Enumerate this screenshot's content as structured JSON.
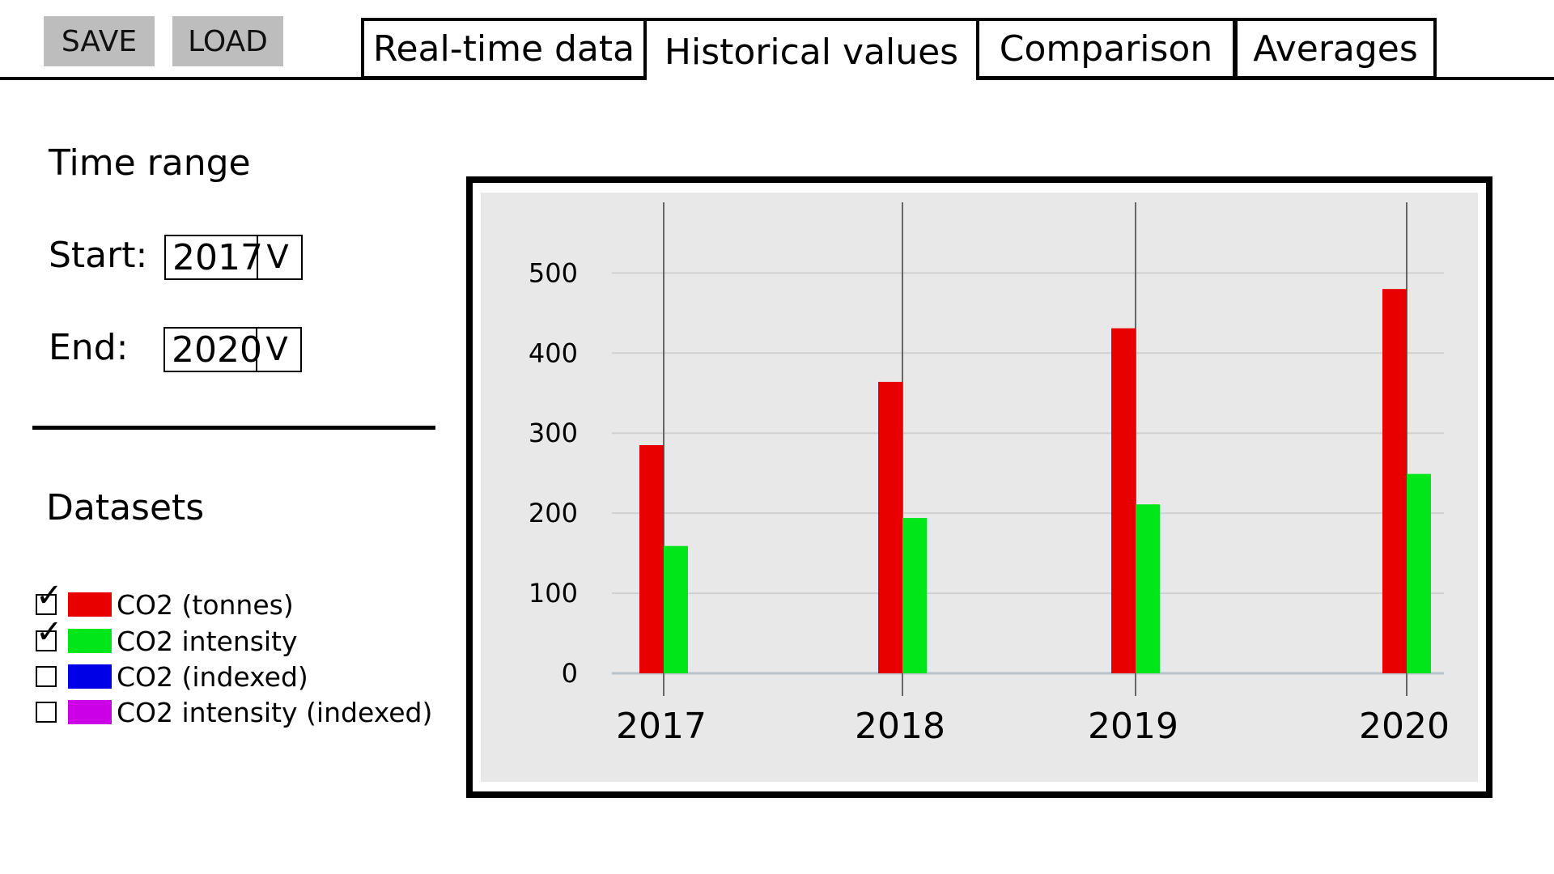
{
  "toolbar": {
    "save_label": "SAVE",
    "load_label": "LOAD"
  },
  "tabs": [
    {
      "label": "Real-time data",
      "active": false
    },
    {
      "label": "Historical values",
      "active": true
    },
    {
      "label": "Comparison",
      "active": false
    },
    {
      "label": "Averages",
      "active": false
    }
  ],
  "time_range": {
    "title": "Time range",
    "start_label": "Start:",
    "start_value": "2017",
    "end_label": "End:",
    "end_value": "2020",
    "dropdown_glyph": "V"
  },
  "datasets": {
    "title": "Datasets",
    "items": [
      {
        "label": "CO2 (tonnes)",
        "color": "#e80000",
        "checked": true
      },
      {
        "label": "CO2 intensity",
        "color": "#00e619",
        "checked": true
      },
      {
        "label": "CO2 (indexed)",
        "color": "#0000e6",
        "checked": false
      },
      {
        "label": "CO2 intensity (indexed)",
        "color": "#cc00e6",
        "checked": false
      }
    ]
  },
  "chart_data": {
    "type": "bar",
    "categories": [
      "2017",
      "2018",
      "2019",
      "2020"
    ],
    "series": [
      {
        "color": "#e80000",
        "values": [
          285,
          364,
          431,
          480
        ]
      },
      {
        "color": "#00e619",
        "values": [
          159,
          194,
          211,
          249
        ]
      }
    ],
    "yticks": [
      0,
      100,
      200,
      300,
      400,
      500
    ],
    "ylim": [
      0,
      560
    ],
    "grid": true,
    "background": "#e8e8e8"
  }
}
